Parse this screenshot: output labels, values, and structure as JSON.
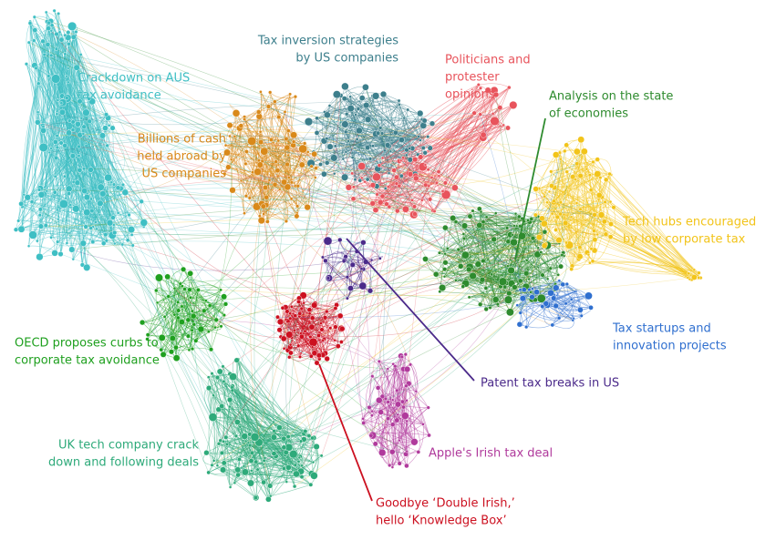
{
  "clusters": [
    {
      "label": [
        "Crackdown on AUS",
        "tax avoidance"
      ],
      "color": "#3fbfc4"
    },
    {
      "label": [
        "Tax inversion strategies",
        "by US companies"
      ],
      "color": "#3d7f8c"
    },
    {
      "label": [
        "Politicians and",
        "protester",
        "opinions"
      ],
      "color": "#e8545c"
    },
    {
      "label": [
        "Analysis on the state",
        "of economies"
      ],
      "color": "#2e8b2e"
    },
    {
      "label": [
        "Billions of cash",
        "held abroad by",
        "US companies"
      ],
      "color": "#d9891a"
    },
    {
      "label": [
        "Tech hubs encouraged",
        "by low corporate tax"
      ],
      "color": "#f2c41a"
    },
    {
      "label": [
        "Tax startups and",
        "innovation projects"
      ],
      "color": "#2f6fcf"
    },
    {
      "label": [
        "Patent tax breaks in US"
      ],
      "color": "#4b2a8a"
    },
    {
      "label": [
        "OECD proposes curbs to",
        "corporate tax avoidance"
      ],
      "color": "#1fa01f"
    },
    {
      "label": [
        "Apple's Irish tax deal"
      ],
      "color": "#b03a9c"
    },
    {
      "label": [
        "UK tech company crack",
        "down and following deals"
      ],
      "color": "#2eaa7a"
    },
    {
      "label": [
        "Goodbye ‘Double Irish,’",
        "hello ‘Knowledge Box’"
      ],
      "color": "#cc1020"
    }
  ]
}
